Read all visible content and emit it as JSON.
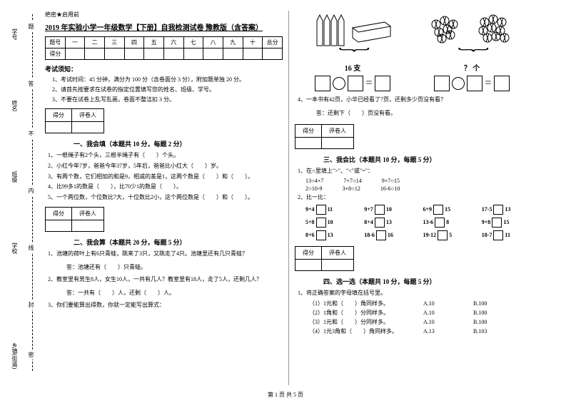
{
  "margin": {
    "labels": [
      "学号",
      "姓名",
      "班级",
      "学校",
      "乡镇(街道)"
    ],
    "spine": [
      "题",
      "答",
      "不",
      "内",
      "线",
      "封",
      "密"
    ]
  },
  "secret": "绝密★启用前",
  "title": "2019 年实验小学一年级数学【下册】自我检测试卷 豫教版（含答案）",
  "score_headers": [
    "题号",
    "一",
    "二",
    "三",
    "四",
    "五",
    "六",
    "七",
    "八",
    "九",
    "十",
    "总分"
  ],
  "score_row2": "得分",
  "instructions_h": "考试须知：",
  "instructions": [
    "1、考试时间：45 分钟，满分为 100 分（含卷面分 3 分），附加题单独 20 分。",
    "2、请首先按要求在试卷的指定位置填写您的姓名、班级、学号。",
    "3、不要在试卷上乱写乱画，卷面不整洁扣 3 分。"
  ],
  "scorebox": {
    "c1": "得分",
    "c2": "评卷人"
  },
  "s1": {
    "title": "一、我会填（本题共 10 分，每题 2 分）",
    "q": [
      "1、一根绳子有2个头，三根半绳子有（　　）个头。",
      "2、小红今年7岁，爸爸今年37岁，5年后，爸爸比小红大（　　）岁。",
      "3、有两个数，它们相加的和是9，相减的差是1，这两个数是（　　）和（　　）。",
      "4、比99多1的数是（　　），比70少1的数是（　　）。",
      "5、一个两位数，个位数比7大，十位数比2小，这个两位数是（　　）和（　　）。"
    ]
  },
  "s2": {
    "title": "二、我会算（本题共 20 分，每题 5 分）",
    "q1": "1、池塘的荷叶上有6只青蛙，跳来了3只，又跳走了4只。池塘里还有几只青蛙？",
    "a1": "答：池塘还有（　　）只青蛙。",
    "q2": "2、教室里有男生8人，女生10人，一共有几人？教室里有18人，走了5人，还剩几人？",
    "a2": "答：一共有（　　）人，还剩（　　）人。",
    "q3": "3、你们要能算出得数，你就一定能写出算式：",
    "pencils_label": "16 支",
    "circles_label": "？ 个",
    "q4": "4、一本书有42页，小华已经看了7页，还剩多少页没有看？",
    "a4": "答：还剩下（　　）页没有看。"
  },
  "s3": {
    "title": "三、我会比（本题共 10 分，每题 5 分）",
    "q1": "1、在○里填上\">\"、\"<\"或\"=\"：",
    "comps": [
      [
        "13○4+7",
        "7+7○14",
        "9+7○15"
      ],
      [
        "2○10-9",
        "3+8○12",
        "16-6○10"
      ]
    ],
    "q2": "2、比一比：",
    "fills": [
      [
        {
          "l": "9+4",
          "r": "11"
        },
        {
          "l": "9+7",
          "r": "10"
        },
        {
          "l": "6+9",
          "r": "15"
        },
        {
          "l": "17-5",
          "r": "13"
        }
      ],
      [
        {
          "l": "5+8",
          "r": "10"
        },
        {
          "l": "8+4",
          "r": "13"
        },
        {
          "l": "13-6",
          "r": "8"
        },
        {
          "l": "9+8",
          "r": "15"
        }
      ],
      [
        {
          "l": "8+6",
          "r": "13"
        },
        {
          "l": "18-6",
          "r": "16"
        },
        {
          "l": "19-12",
          "r": "5"
        },
        {
          "l": "18-7",
          "r": "11"
        }
      ]
    ]
  },
  "s4": {
    "title": "四、选一选（本题共 10 分，每题 5 分）",
    "q1": "1、将正确答案的字母填在括号里。",
    "choices": [
      {
        "t": "（1）1元和（　　）角同样多。",
        "a": "A.10",
        "b": "B.100"
      },
      {
        "t": "（2）1角和（　　）分同样多。",
        "a": "A.10",
        "b": "B.100"
      },
      {
        "t": "（3）1元和（　　）分同样多。",
        "a": "A.10",
        "b": "B.100"
      },
      {
        "t": "（4）1元3角和（　　）角同样多。",
        "a": "A.13",
        "b": "B.103"
      }
    ]
  },
  "footer": "第 1 页  共 5 页"
}
